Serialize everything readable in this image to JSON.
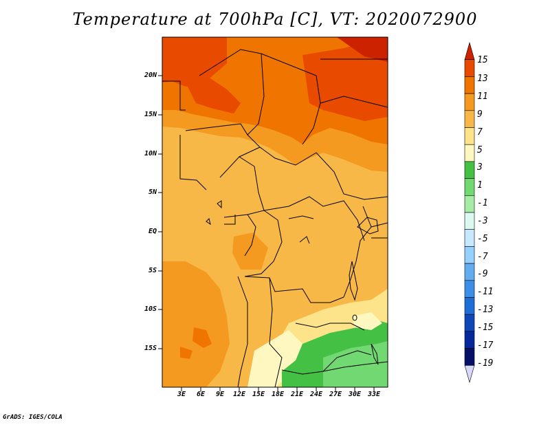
{
  "title": "Temperature at 700hPa [C], VT: 2020072900",
  "credit": "GrADS: IGES/COLA",
  "map": {
    "lat_labels": [
      "20N",
      "15N",
      "10N",
      "5N",
      "EQ",
      "5S",
      "10S",
      "15S"
    ],
    "lon_labels": [
      "3E",
      "6E",
      "9E",
      "12E",
      "15E",
      "18E",
      "21E",
      "24E",
      "27E",
      "30E",
      "33E"
    ]
  },
  "colorbar": {
    "labels": [
      "15",
      "13",
      "11",
      "9",
      "7",
      "5",
      "3",
      "1",
      "-1",
      "-3",
      "-5",
      "-7",
      "-9",
      "-11",
      "-13",
      "-15",
      "-17",
      "-19"
    ],
    "colors": [
      "#cc2200",
      "#e84a00",
      "#f07400",
      "#f59a20",
      "#f8b848",
      "#fde48a",
      "#fef8c0",
      "#44c044",
      "#72d872",
      "#a6eca6",
      "#dcf8f0",
      "#c8e8ff",
      "#96d0ff",
      "#64acf0",
      "#3c8ee6",
      "#1e6ed8",
      "#0e48b8",
      "#07289a",
      "#061066",
      "#d8d8f8"
    ]
  }
}
